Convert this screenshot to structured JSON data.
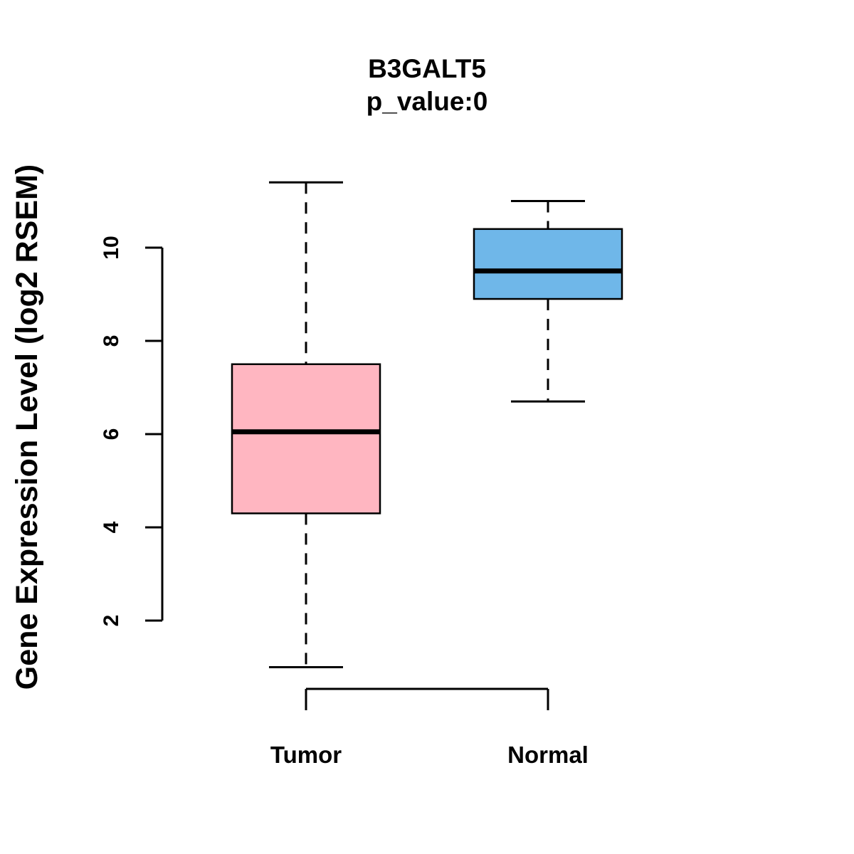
{
  "chart_data": {
    "type": "boxplot",
    "title": "B3GALT5",
    "subtitle": "p_value:0",
    "ylabel": "Gene Expression Level (log2 RSEM)",
    "xlabel": "",
    "categories": [
      "Tumor",
      "Normal"
    ],
    "yticks": [
      2,
      4,
      6,
      8,
      10
    ],
    "ylim": [
      0.7,
      11.7
    ],
    "grid": false,
    "legend": false,
    "series": [
      {
        "name": "Tumor",
        "whisker_low": 1.0,
        "q1": 4.3,
        "median": 6.05,
        "q3": 7.5,
        "whisker_high": 11.4,
        "color": "#FFB6C1"
      },
      {
        "name": "Normal",
        "whisker_low": 6.7,
        "q1": 8.9,
        "median": 9.5,
        "q3": 10.4,
        "whisker_high": 11.0,
        "color": "#6FB7E9"
      }
    ]
  }
}
